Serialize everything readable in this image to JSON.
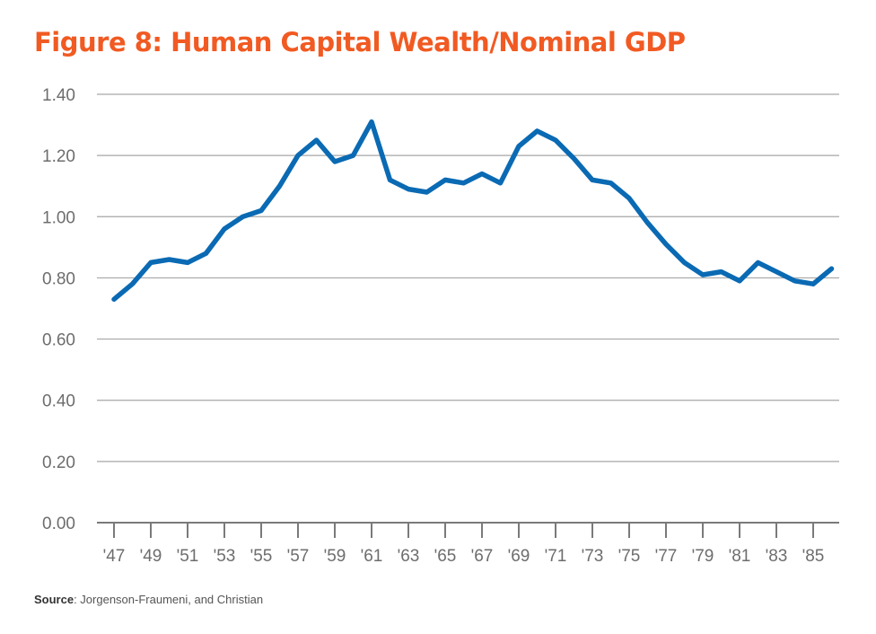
{
  "title": "Figure 8: Human Capital Wealth/Nominal GDP",
  "source": {
    "label": "Source",
    "text": ": Jorgenson-Fraumeni, and Christian"
  },
  "colors": {
    "title": "#f15a22",
    "line": "#0a6ab3",
    "grid": "#a6a6a6"
  },
  "chart_data": {
    "type": "line",
    "title": "Figure 8: Human Capital Wealth/Nominal GDP",
    "xlabel": "",
    "ylabel": "",
    "ylim": [
      0,
      1.4
    ],
    "yticks": [
      "0.00",
      "0.20",
      "0.40",
      "0.60",
      "0.80",
      "1.00",
      "1.20",
      "1.40"
    ],
    "xtick_labels": [
      "'47",
      "'49",
      "'51",
      "'53",
      "'55",
      "'57",
      "'59",
      "'61",
      "'63",
      "'65",
      "'67",
      "'69",
      "'71",
      "'73",
      "'75",
      "'77",
      "'79",
      "'81",
      "'83",
      "'85"
    ],
    "grid": "horizontal",
    "x": [
      1947,
      1948,
      1949,
      1950,
      1951,
      1952,
      1953,
      1954,
      1955,
      1956,
      1957,
      1958,
      1959,
      1960,
      1961,
      1962,
      1963,
      1964,
      1965,
      1966,
      1967,
      1968,
      1969,
      1970,
      1971,
      1972,
      1973,
      1974,
      1975,
      1976,
      1977,
      1978,
      1979,
      1980,
      1981,
      1982,
      1983,
      1984,
      1985,
      1986
    ],
    "series": [
      {
        "values": [
          0.73,
          0.78,
          0.85,
          0.86,
          0.85,
          0.88,
          0.96,
          1.0,
          1.02,
          1.1,
          1.2,
          1.25,
          1.18,
          1.2,
          1.31,
          1.12,
          1.09,
          1.08,
          1.12,
          1.11,
          1.14,
          1.11,
          1.23,
          1.28,
          1.25,
          1.19,
          1.12,
          1.11,
          1.06,
          0.98,
          0.91,
          0.85,
          0.81,
          0.82,
          0.79,
          0.85,
          0.82,
          0.79,
          0.78,
          0.83
        ]
      }
    ]
  }
}
